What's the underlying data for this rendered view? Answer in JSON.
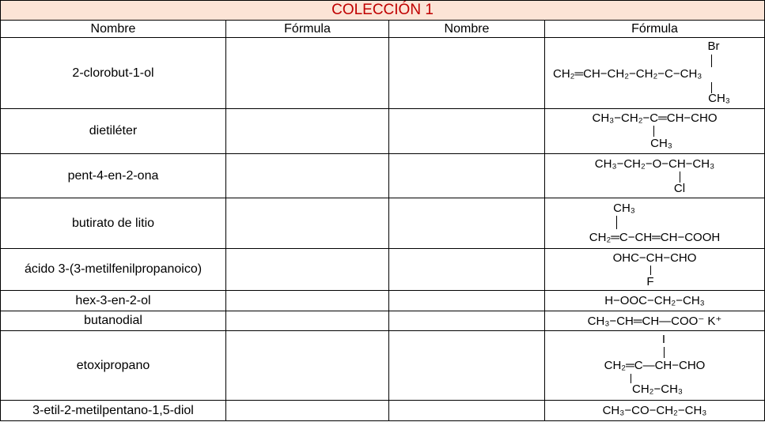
{
  "title": "COLECCIÓN 1",
  "headers": [
    "Nombre",
    "Fórmula",
    "Nombre",
    "Fórmula"
  ],
  "rows": [
    {
      "name": "2-clorobut-1-ol",
      "formula": {
        "main": "CH₂═CH−CH₂−CH₂−C−CH₃",
        "top": "Br",
        "bottom": "CH₃"
      }
    },
    {
      "name": "dietiléter",
      "formula": {
        "main": "CH₃−CH₂−C═CH−CHO",
        "bottom": "CH₃"
      }
    },
    {
      "name": "pent-4-en-2-ona",
      "formula": {
        "main": "CH₃−CH₂−O−CH−CH₃",
        "bottom": "Cl"
      }
    },
    {
      "name": "butirato de litio",
      "formula": {
        "main": "CH₂═C−CH═CH−COOH",
        "top": "CH₃"
      }
    },
    {
      "name": "ácido 3-(3-metilfenilpropanoico)",
      "formula": {
        "main": "OHC−CH−CHO",
        "bottom": "F"
      }
    },
    {
      "name": "hex-3-en-2-ol",
      "formula": {
        "main": "H−OOC−CH₂−CH₃"
      }
    },
    {
      "name": "butanodial",
      "formula": {
        "main": "CH₃−CH═CH—COO⁻ K⁺"
      }
    },
    {
      "name": "etoxipropano",
      "formula": {
        "main": "CH₂═C—CH−CHO",
        "top": "I",
        "bottom": "CH₂−CH₃"
      }
    },
    {
      "name": "3-etil-2-metilpentano-1,5-diol",
      "formula": {
        "main": "CH₃−CO−CH₂−CH₃"
      }
    }
  ]
}
